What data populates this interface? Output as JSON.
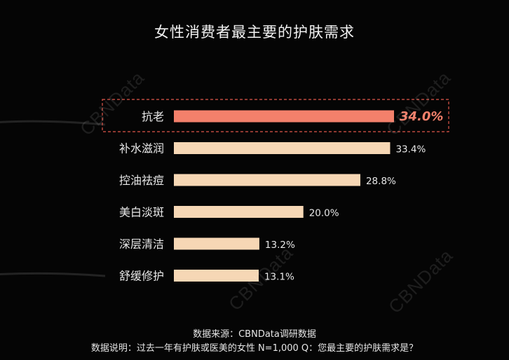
{
  "title": "女性消费者最主要的护肤需求",
  "footer": {
    "source": "数据来源：CBNData调研数据",
    "note": "数据说明：过去一年有护肤或医美的女性 N=1,000 Q：您最主要的护肤需求是？"
  },
  "watermark": "CBNData",
  "colors": {
    "background": "#050505",
    "highlight_bar": "#f3806b",
    "highlight_label": "#f3806b",
    "bar": "#f6d7b5",
    "highlight_border": "#e0584a",
    "text": "#e8e8e8"
  },
  "chart_data": {
    "type": "bar",
    "orientation": "horizontal",
    "categories": [
      "抗老",
      "补水滋润",
      "控油祛痘",
      "美白淡斑",
      "深层清洁",
      "舒缓修护"
    ],
    "values": [
      34.0,
      33.4,
      28.8,
      20.0,
      13.2,
      13.1
    ],
    "value_labels": [
      "34.0%",
      "33.4%",
      "28.8%",
      "20.0%",
      "13.2%",
      "13.1%"
    ],
    "highlighted_category": "抗老",
    "xlim": [
      0,
      34.0
    ],
    "grid": false,
    "legend": "none"
  }
}
